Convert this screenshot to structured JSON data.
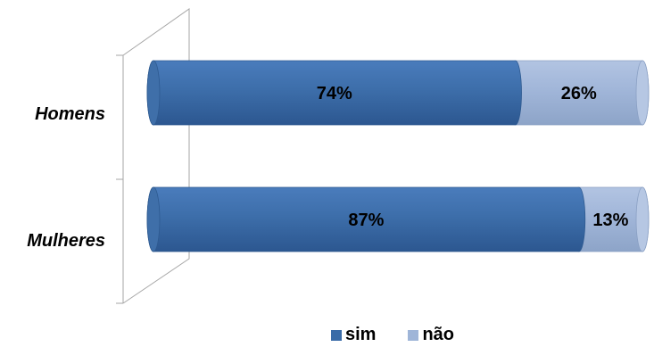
{
  "chart_data": {
    "type": "bar",
    "orientation": "horizontal",
    "stacked": "percent",
    "categories": [
      "Homens",
      "Mulheres"
    ],
    "series": [
      {
        "name": "sim",
        "values": [
          74,
          87
        ],
        "labels": [
          "74%",
          "87%"
        ],
        "color": "#3a6ca8"
      },
      {
        "name": "não",
        "values": [
          26,
          13
        ],
        "labels": [
          "26%",
          "13%"
        ],
        "color": "#9fb5d8"
      }
    ],
    "xlim": [
      0,
      100
    ],
    "grid": false,
    "legend": "bottom"
  }
}
